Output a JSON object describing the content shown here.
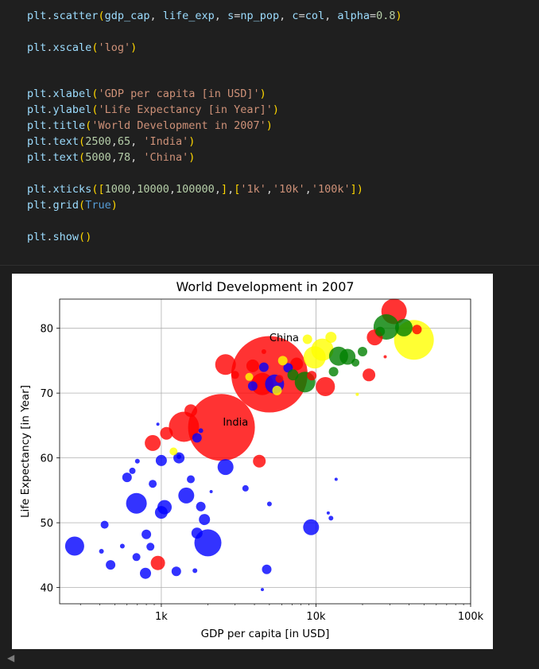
{
  "code": {
    "lines": [
      [
        [
          "plt",
          ".scatter"
        ],
        [
          "(",
          ""
        ],
        [
          "gdp_cap",
          ""
        ],
        [
          ", ",
          ""
        ],
        [
          "life_exp",
          ""
        ],
        [
          ", s=",
          ""
        ],
        [
          "np_pop",
          ""
        ],
        [
          ", c=",
          ""
        ],
        [
          "col",
          ""
        ],
        [
          ", alpha=",
          ""
        ],
        [
          "0.8",
          ""
        ],
        [
          ")",
          ""
        ]
      ],
      [],
      [],
      [],
      [],
      [],
      [],
      [],
      [],
      [],
      [],
      []
    ],
    "text": [
      "plt.scatter(gdp_cap, life_exp, s=np_pop, c=col, alpha=0.8)",
      "plt.xscale('log')",
      "plt.xlabel('GDP per capita [in USD]')",
      "plt.ylabel('Life Expectancy [in Year]')",
      "plt.title('World Development in 2007')",
      "plt.text(2500,65, 'India')",
      "plt.text(5000,78, 'China')",
      "plt.xticks([1000,10000,100000,],['1k','10k','100k'])",
      "plt.grid(True)",
      "plt.show()"
    ]
  },
  "colors": {
    "editor_bg": "#1f1f1f",
    "plain": "#9cdcfe",
    "string": "#ce9178",
    "number": "#b5cea8",
    "keyword_const": "#569cd6",
    "paren": "#ffd700"
  },
  "chart_data": {
    "type": "scatter",
    "title": "World Development in 2007",
    "xlabel": "GDP per capita [in USD]",
    "ylabel": "Life Expectancy [in Year]",
    "xscale": "log",
    "xlim": [
      220,
      100000
    ],
    "ylim": [
      37.5,
      84.5
    ],
    "xticks": [
      1000,
      10000,
      100000
    ],
    "xticklabels": [
      "1k",
      "10k",
      "100k"
    ],
    "yticks": [
      40,
      50,
      60,
      70,
      80
    ],
    "yticklabels": [
      "40",
      "50",
      "60",
      "70",
      "80"
    ],
    "grid": true,
    "alpha": 0.8,
    "annotations": [
      {
        "x": 2500,
        "y": 65,
        "text": "India"
      },
      {
        "x": 5000,
        "y": 78,
        "text": "China"
      }
    ],
    "points": [
      {
        "x": 5000,
        "y": 72.9,
        "r": 48,
        "c": "red"
      },
      {
        "x": 2450,
        "y": 64.7,
        "r": 42,
        "c": "red"
      },
      {
        "x": 32000,
        "y": 82.6,
        "r": 16,
        "c": "red"
      },
      {
        "x": 43000,
        "y": 78.2,
        "r": 25,
        "c": "yellow"
      },
      {
        "x": 28500,
        "y": 80.2,
        "r": 16,
        "c": "green"
      },
      {
        "x": 2000,
        "y": 46.9,
        "r": 17,
        "c": "blue"
      },
      {
        "x": 275,
        "y": 46.4,
        "r": 12,
        "c": "blue"
      },
      {
        "x": 690,
        "y": 53.0,
        "r": 13,
        "c": "blue"
      },
      {
        "x": 1450,
        "y": 54.2,
        "r": 10,
        "c": "blue"
      },
      {
        "x": 2600,
        "y": 58.6,
        "r": 10,
        "c": "blue"
      },
      {
        "x": 9300,
        "y": 49.3,
        "r": 10,
        "c": "blue"
      },
      {
        "x": 2600,
        "y": 74.4,
        "r": 13,
        "c": "red"
      },
      {
        "x": 1400,
        "y": 64.8,
        "r": 19,
        "c": "red"
      },
      {
        "x": 4500,
        "y": 71.4,
        "r": 14,
        "c": "red"
      },
      {
        "x": 11500,
        "y": 71.0,
        "r": 12,
        "c": "red"
      },
      {
        "x": 9800,
        "y": 75.5,
        "r": 14,
        "c": "yellow"
      },
      {
        "x": 11000,
        "y": 76.7,
        "r": 14,
        "c": "yellow"
      },
      {
        "x": 5400,
        "y": 71.4,
        "r": 12,
        "c": "blue"
      },
      {
        "x": 8500,
        "y": 71.7,
        "r": 13,
        "c": "green"
      },
      {
        "x": 16000,
        "y": 75.6,
        "r": 10,
        "c": "green"
      },
      {
        "x": 22000,
        "y": 72.8,
        "r": 8,
        "c": "red"
      },
      {
        "x": 24000,
        "y": 78.6,
        "r": 10,
        "c": "red"
      },
      {
        "x": 37000,
        "y": 80.1,
        "r": 11,
        "c": "green"
      },
      {
        "x": 880,
        "y": 62.3,
        "r": 10,
        "c": "red"
      },
      {
        "x": 1080,
        "y": 63.8,
        "r": 8,
        "c": "red"
      },
      {
        "x": 1550,
        "y": 67.3,
        "r": 8,
        "c": "red"
      },
      {
        "x": 4300,
        "y": 59.5,
        "r": 8,
        "c": "red"
      },
      {
        "x": 950,
        "y": 43.8,
        "r": 9,
        "c": "red"
      },
      {
        "x": 3900,
        "y": 74.2,
        "r": 8,
        "c": "red"
      },
      {
        "x": 7500,
        "y": 74.5,
        "r": 8,
        "c": "red"
      },
      {
        "x": 1050,
        "y": 52.4,
        "r": 9,
        "c": "blue"
      },
      {
        "x": 1000,
        "y": 51.6,
        "r": 8,
        "c": "blue"
      },
      {
        "x": 1300,
        "y": 60.0,
        "r": 7,
        "c": "blue"
      },
      {
        "x": 1900,
        "y": 50.5,
        "r": 7,
        "c": "blue"
      },
      {
        "x": 1700,
        "y": 48.4,
        "r": 7,
        "c": "blue"
      },
      {
        "x": 800,
        "y": 48.2,
        "r": 6,
        "c": "blue"
      },
      {
        "x": 470,
        "y": 43.5,
        "r": 6,
        "c": "blue"
      },
      {
        "x": 790,
        "y": 42.2,
        "r": 7,
        "c": "blue"
      },
      {
        "x": 1250,
        "y": 42.5,
        "r": 6,
        "c": "blue"
      },
      {
        "x": 4800,
        "y": 42.8,
        "r": 6,
        "c": "blue"
      },
      {
        "x": 880,
        "y": 56.0,
        "r": 5,
        "c": "blue"
      },
      {
        "x": 600,
        "y": 57.0,
        "r": 6,
        "c": "blue"
      },
      {
        "x": 1700,
        "y": 63.1,
        "r": 6,
        "c": "blue"
      },
      {
        "x": 1550,
        "y": 56.7,
        "r": 5,
        "c": "blue"
      },
      {
        "x": 1800,
        "y": 52.5,
        "r": 6,
        "c": "blue"
      },
      {
        "x": 1000,
        "y": 59.6,
        "r": 7,
        "c": "blue"
      },
      {
        "x": 430,
        "y": 49.7,
        "r": 5,
        "c": "blue"
      },
      {
        "x": 690,
        "y": 44.7,
        "r": 5,
        "c": "blue"
      },
      {
        "x": 850,
        "y": 46.3,
        "r": 5,
        "c": "blue"
      },
      {
        "x": 3900,
        "y": 71.1,
        "r": 6,
        "c": "blue"
      },
      {
        "x": 4600,
        "y": 74.0,
        "r": 6,
        "c": "blue"
      },
      {
        "x": 6600,
        "y": 73.9,
        "r": 6,
        "c": "blue"
      },
      {
        "x": 14000,
        "y": 75.7,
        "r": 12,
        "c": "green"
      },
      {
        "x": 18000,
        "y": 74.7,
        "r": 5,
        "c": "green"
      },
      {
        "x": 20000,
        "y": 76.4,
        "r": 6,
        "c": "green"
      },
      {
        "x": 8800,
        "y": 78.3,
        "r": 6,
        "c": "yellow"
      },
      {
        "x": 12500,
        "y": 78.6,
        "r": 7,
        "c": "yellow"
      },
      {
        "x": 5600,
        "y": 70.4,
        "r": 6,
        "c": "yellow"
      },
      {
        "x": 6100,
        "y": 75.0,
        "r": 6,
        "c": "yellow"
      },
      {
        "x": 1200,
        "y": 61.0,
        "r": 5,
        "c": "yellow"
      },
      {
        "x": 3700,
        "y": 72.5,
        "r": 5,
        "c": "yellow"
      },
      {
        "x": 7100,
        "y": 72.8,
        "r": 7,
        "c": "green"
      },
      {
        "x": 13000,
        "y": 73.3,
        "r": 6,
        "c": "green"
      },
      {
        "x": 26000,
        "y": 79.5,
        "r": 6,
        "c": "green"
      },
      {
        "x": 3000,
        "y": 72.8,
        "r": 5,
        "c": "red"
      },
      {
        "x": 45000,
        "y": 79.8,
        "r": 6,
        "c": "red"
      },
      {
        "x": 5800,
        "y": 72.2,
        "r": 5,
        "c": "red"
      },
      {
        "x": 9400,
        "y": 72.7,
        "r": 6,
        "c": "red"
      },
      {
        "x": 650,
        "y": 58.0,
        "r": 4,
        "c": "blue"
      },
      {
        "x": 700,
        "y": 59.5,
        "r": 3,
        "c": "blue"
      },
      {
        "x": 950,
        "y": 65.2,
        "r": 2,
        "c": "blue"
      },
      {
        "x": 2100,
        "y": 54.8,
        "r": 2,
        "c": "blue"
      },
      {
        "x": 3500,
        "y": 55.3,
        "r": 4,
        "c": "blue"
      },
      {
        "x": 5000,
        "y": 52.9,
        "r": 3,
        "c": "blue"
      },
      {
        "x": 4500,
        "y": 39.7,
        "r": 2,
        "c": "blue"
      },
      {
        "x": 1650,
        "y": 42.6,
        "r": 3,
        "c": "blue"
      },
      {
        "x": 560,
        "y": 46.4,
        "r": 3,
        "c": "blue"
      },
      {
        "x": 410,
        "y": 45.6,
        "r": 3,
        "c": "blue"
      },
      {
        "x": 13500,
        "y": 56.7,
        "r": 2,
        "c": "blue"
      },
      {
        "x": 12000,
        "y": 51.5,
        "r": 2,
        "c": "blue"
      },
      {
        "x": 12500,
        "y": 50.7,
        "r": 3,
        "c": "blue"
      },
      {
        "x": 1300,
        "y": 60.2,
        "r": 3,
        "c": "blue"
      },
      {
        "x": 1800,
        "y": 64.2,
        "r": 3,
        "c": "blue"
      },
      {
        "x": 4600,
        "y": 76.4,
        "r": 3,
        "c": "red"
      },
      {
        "x": 28000,
        "y": 75.6,
        "r": 2,
        "c": "red"
      },
      {
        "x": 18500,
        "y": 69.8,
        "r": 2,
        "c": "yellow"
      }
    ]
  }
}
